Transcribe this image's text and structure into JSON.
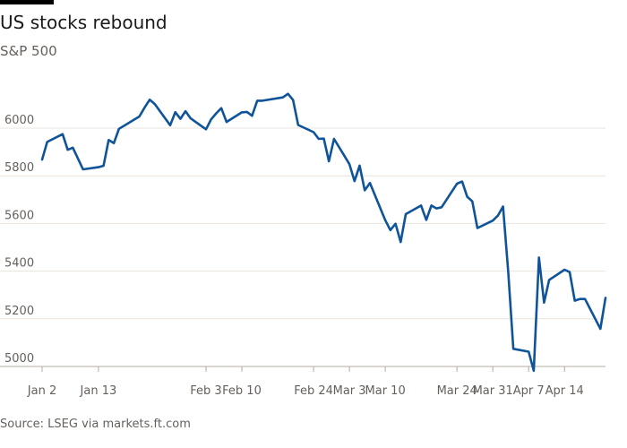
{
  "header": {
    "title": "US stocks rebound",
    "subtitle": "S&P 500"
  },
  "footer": {
    "source": "Source: LSEG via markets.ft.com"
  },
  "colors": {
    "line": "#0f5499",
    "grid": "#e9e3dc",
    "axis": "#66605c",
    "text": "#1a1a1a"
  },
  "chart_data": {
    "type": "line",
    "title": "US stocks rebound",
    "subtitle": "S&P 500",
    "xlabel": "",
    "ylabel": "",
    "ylim": [
      5000,
      6200
    ],
    "y_ticks": [
      5000,
      5200,
      5400,
      5600,
      5800,
      6000
    ],
    "x_ticks": [
      {
        "date": "2025-01-02",
        "label": "Jan 2"
      },
      {
        "date": "2025-01-13",
        "label": "Jan 13"
      },
      {
        "date": "2025-02-03",
        "label": "Feb 3"
      },
      {
        "date": "2025-02-10",
        "label": "Feb 10"
      },
      {
        "date": "2025-02-24",
        "label": "Feb 24"
      },
      {
        "date": "2025-03-03",
        "label": "Mar 3"
      },
      {
        "date": "2025-03-10",
        "label": "Mar 10"
      },
      {
        "date": "2025-03-24",
        "label": "Mar 24"
      },
      {
        "date": "2025-03-31",
        "label": "Mar 31"
      },
      {
        "date": "2025-04-07",
        "label": "Apr 7"
      },
      {
        "date": "2025-04-14",
        "label": "Apr 14"
      }
    ],
    "grid": "horizontal",
    "series": [
      {
        "name": "",
        "points": [
          [
            "2025-01-02",
            5868
          ],
          [
            "2025-01-03",
            5942
          ],
          [
            "2025-01-06",
            5975
          ],
          [
            "2025-01-07",
            5909
          ],
          [
            "2025-01-08",
            5918
          ],
          [
            "2025-01-10",
            5827
          ],
          [
            "2025-01-13",
            5836
          ],
          [
            "2025-01-14",
            5842
          ],
          [
            "2025-01-15",
            5950
          ],
          [
            "2025-01-16",
            5937
          ],
          [
            "2025-01-17",
            5997
          ],
          [
            "2025-01-21",
            6049
          ],
          [
            "2025-01-22",
            6086
          ],
          [
            "2025-01-23",
            6119
          ],
          [
            "2025-01-24",
            6101
          ],
          [
            "2025-01-27",
            6012
          ],
          [
            "2025-01-28",
            6067
          ],
          [
            "2025-01-29",
            6039
          ],
          [
            "2025-01-30",
            6071
          ],
          [
            "2025-01-31",
            6041
          ],
          [
            "2025-02-03",
            5995
          ],
          [
            "2025-02-04",
            6037
          ],
          [
            "2025-02-05",
            6062
          ],
          [
            "2025-02-06",
            6084
          ],
          [
            "2025-02-07",
            6026
          ],
          [
            "2025-02-10",
            6066
          ],
          [
            "2025-02-11",
            6068
          ],
          [
            "2025-02-12",
            6052
          ],
          [
            "2025-02-13",
            6115
          ],
          [
            "2025-02-14",
            6115
          ],
          [
            "2025-02-18",
            6129
          ],
          [
            "2025-02-19",
            6144
          ],
          [
            "2025-02-20",
            6118
          ],
          [
            "2025-02-21",
            6013
          ],
          [
            "2025-02-24",
            5983
          ],
          [
            "2025-02-25",
            5955
          ],
          [
            "2025-02-26",
            5956
          ],
          [
            "2025-02-27",
            5861
          ],
          [
            "2025-02-28",
            5955
          ],
          [
            "2025-03-03",
            5849
          ],
          [
            "2025-03-04",
            5778
          ],
          [
            "2025-03-05",
            5843
          ],
          [
            "2025-03-06",
            5739
          ],
          [
            "2025-03-07",
            5770
          ],
          [
            "2025-03-10",
            5614
          ],
          [
            "2025-03-11",
            5572
          ],
          [
            "2025-03-12",
            5599
          ],
          [
            "2025-03-13",
            5522
          ],
          [
            "2025-03-14",
            5639
          ],
          [
            "2025-03-17",
            5675
          ],
          [
            "2025-03-18",
            5615
          ],
          [
            "2025-03-19",
            5675
          ],
          [
            "2025-03-20",
            5663
          ],
          [
            "2025-03-21",
            5668
          ],
          [
            "2025-03-24",
            5767
          ],
          [
            "2025-03-25",
            5776
          ],
          [
            "2025-03-26",
            5712
          ],
          [
            "2025-03-27",
            5693
          ],
          [
            "2025-03-28",
            5581
          ],
          [
            "2025-03-31",
            5612
          ],
          [
            "2025-04-01",
            5633
          ],
          [
            "2025-04-02",
            5671
          ],
          [
            "2025-04-03",
            5397
          ],
          [
            "2025-04-04",
            5074
          ],
          [
            "2025-04-07",
            5062
          ],
          [
            "2025-04-08",
            4982
          ],
          [
            "2025-04-09",
            5457
          ],
          [
            "2025-04-10",
            5268
          ],
          [
            "2025-04-11",
            5363
          ],
          [
            "2025-04-14",
            5406
          ],
          [
            "2025-04-15",
            5396
          ],
          [
            "2025-04-16",
            5276
          ],
          [
            "2025-04-17",
            5283
          ],
          [
            "2025-04-18",
            5283
          ],
          [
            "2025-04-21",
            5158
          ],
          [
            "2025-04-22",
            5288
          ]
        ]
      }
    ]
  }
}
